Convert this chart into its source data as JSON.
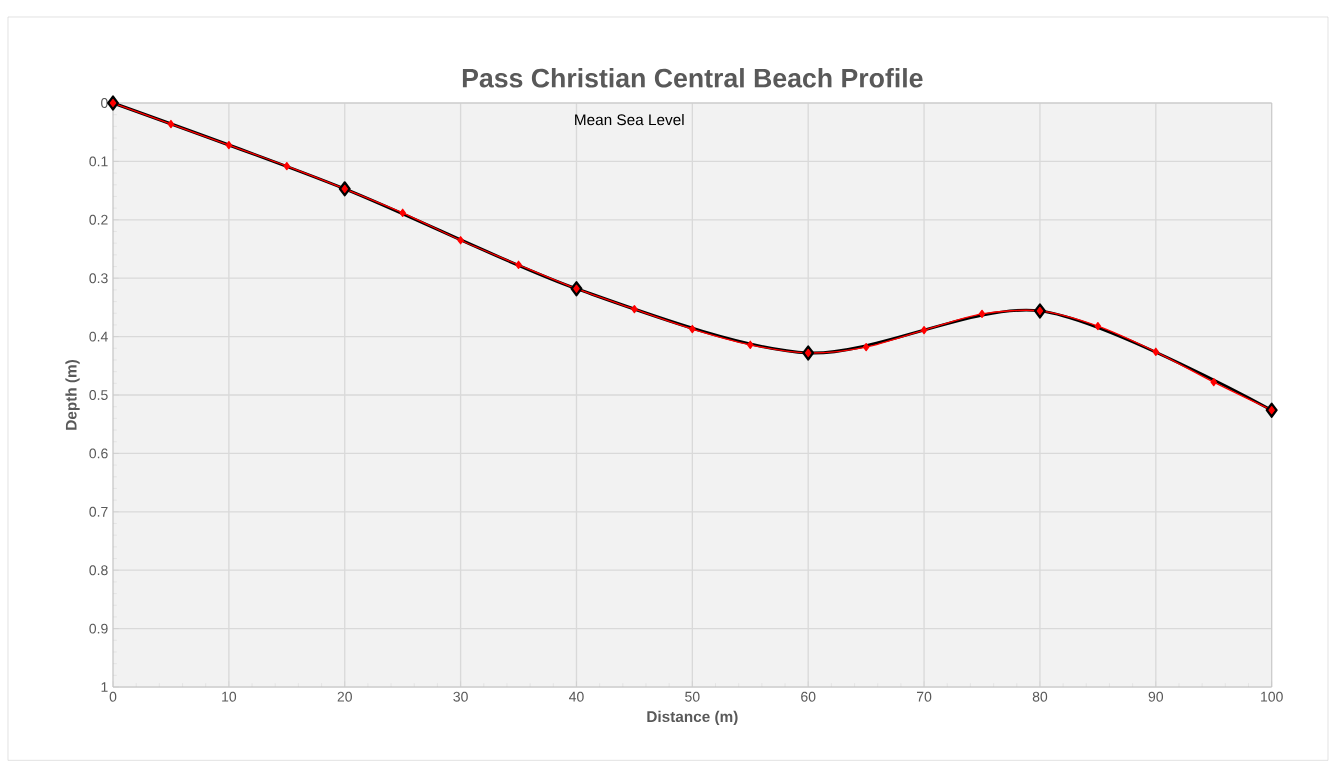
{
  "chart_data": {
    "type": "line",
    "title": "Pass Christian Central Beach Profile",
    "xlabel": "Distance (m)",
    "ylabel": "Depth (m)",
    "annotations": [
      "Mean Sea Level"
    ],
    "series": [
      {
        "color": "#000000",
        "x": [
          0,
          20,
          40,
          60,
          80,
          100
        ],
        "values": [
          0,
          0.147,
          0.318,
          0.428,
          0.356,
          0.526
        ]
      },
      {
        "color": "#ff0000",
        "x": [
          0,
          5,
          10,
          15,
          20,
          25,
          30,
          35,
          40,
          45,
          50,
          55,
          60,
          65,
          70,
          75,
          80,
          85,
          90,
          95,
          100
        ],
        "values": [
          0,
          0.036,
          0.072,
          0.108,
          0.147,
          0.188,
          0.235,
          0.277,
          0.318,
          0.353,
          0.387,
          0.414,
          0.428,
          0.418,
          0.389,
          0.361,
          0.356,
          0.382,
          0.426,
          0.478,
          0.526
        ]
      }
    ],
    "xlim": [
      0,
      100
    ],
    "xticks": [
      0,
      10,
      20,
      30,
      40,
      50,
      60,
      70,
      80,
      90,
      100
    ],
    "ylim": [
      1,
      0
    ],
    "yticks": [
      0,
      0.1,
      0.2,
      0.3,
      0.4,
      0.5,
      0.6,
      0.7,
      0.8,
      0.9,
      1
    ],
    "grid": true,
    "marker": "diamond"
  }
}
